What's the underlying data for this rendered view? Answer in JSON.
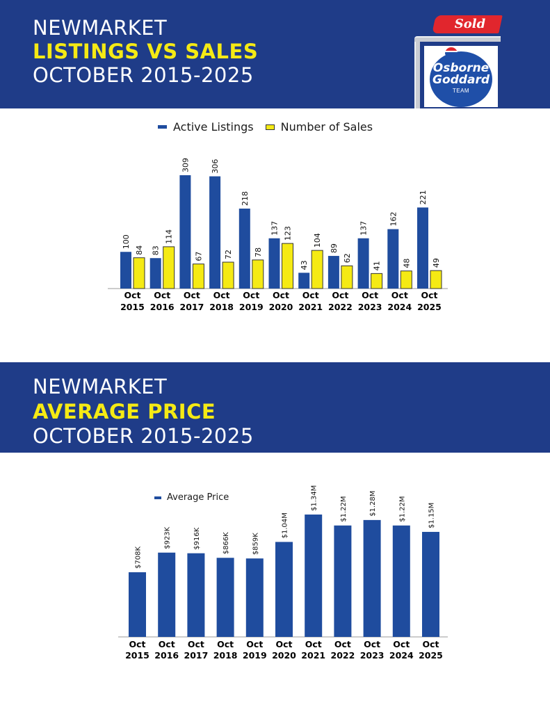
{
  "header_top": {
    "line1": "NEWMARKET",
    "line2": "LISTINGS VS SALES",
    "line3": "OCTOBER 2015-2025"
  },
  "header_mid": {
    "line1": "NEWMARKET",
    "line2": "AVERAGE PRICE",
    "line3": "OCTOBER 2015-2025"
  },
  "logo": {
    "sold": "Sold",
    "name1": "Osborne",
    "name2": "Goddard",
    "team": "TEAM"
  },
  "colors": {
    "banner": "#1f3c88",
    "highlight": "#f5ea14",
    "blue_bar": "#1f4c9e",
    "yellow_bar": "#f5ea14",
    "sold_red": "#e1262d"
  },
  "chart_data": [
    {
      "type": "bar",
      "categories": [
        [
          "Oct",
          "2015"
        ],
        [
          "Oct",
          "2016"
        ],
        [
          "Oct",
          "2017"
        ],
        [
          "Oct",
          "2018"
        ],
        [
          "Oct",
          "2019"
        ],
        [
          "Oct",
          "2020"
        ],
        [
          "Oct",
          "2021"
        ],
        [
          "Oct",
          "2022"
        ],
        [
          "Oct",
          "2023"
        ],
        [
          "Oct",
          "2024"
        ],
        [
          "Oct",
          "2025"
        ]
      ],
      "series": [
        {
          "name": "Active Listings",
          "values": [
            100,
            83,
            309,
            306,
            218,
            137,
            43,
            89,
            137,
            162,
            221
          ]
        },
        {
          "name": "Number of Sales",
          "values": [
            84,
            114,
            67,
            72,
            78,
            123,
            104,
            62,
            41,
            48,
            49
          ]
        }
      ],
      "ylim": [
        0,
        309
      ],
      "legend": "top-center",
      "grid": false
    },
    {
      "type": "bar",
      "categories": [
        [
          "Oct",
          "2015"
        ],
        [
          "Oct",
          "2016"
        ],
        [
          "Oct",
          "2017"
        ],
        [
          "Oct",
          "2018"
        ],
        [
          "Oct",
          "2019"
        ],
        [
          "Oct",
          "2020"
        ],
        [
          "Oct",
          "2021"
        ],
        [
          "Oct",
          "2022"
        ],
        [
          "Oct",
          "2023"
        ],
        [
          "Oct",
          "2024"
        ],
        [
          "Oct",
          "2025"
        ]
      ],
      "series": [
        {
          "name": "Average Price",
          "values": [
            708000,
            923000,
            916000,
            866000,
            859000,
            1040000,
            1340000,
            1220000,
            1280000,
            1220000,
            1150000
          ],
          "labels": [
            "$708K",
            "$923K",
            "$916K",
            "$866K",
            "$859K",
            "$1.04M",
            "$1.34M",
            "$1.22M",
            "$1.28M",
            "$1.22M",
            "$1.15M"
          ]
        }
      ],
      "ylim": [
        0,
        1340000
      ],
      "legend": "top-left",
      "grid": false
    }
  ]
}
